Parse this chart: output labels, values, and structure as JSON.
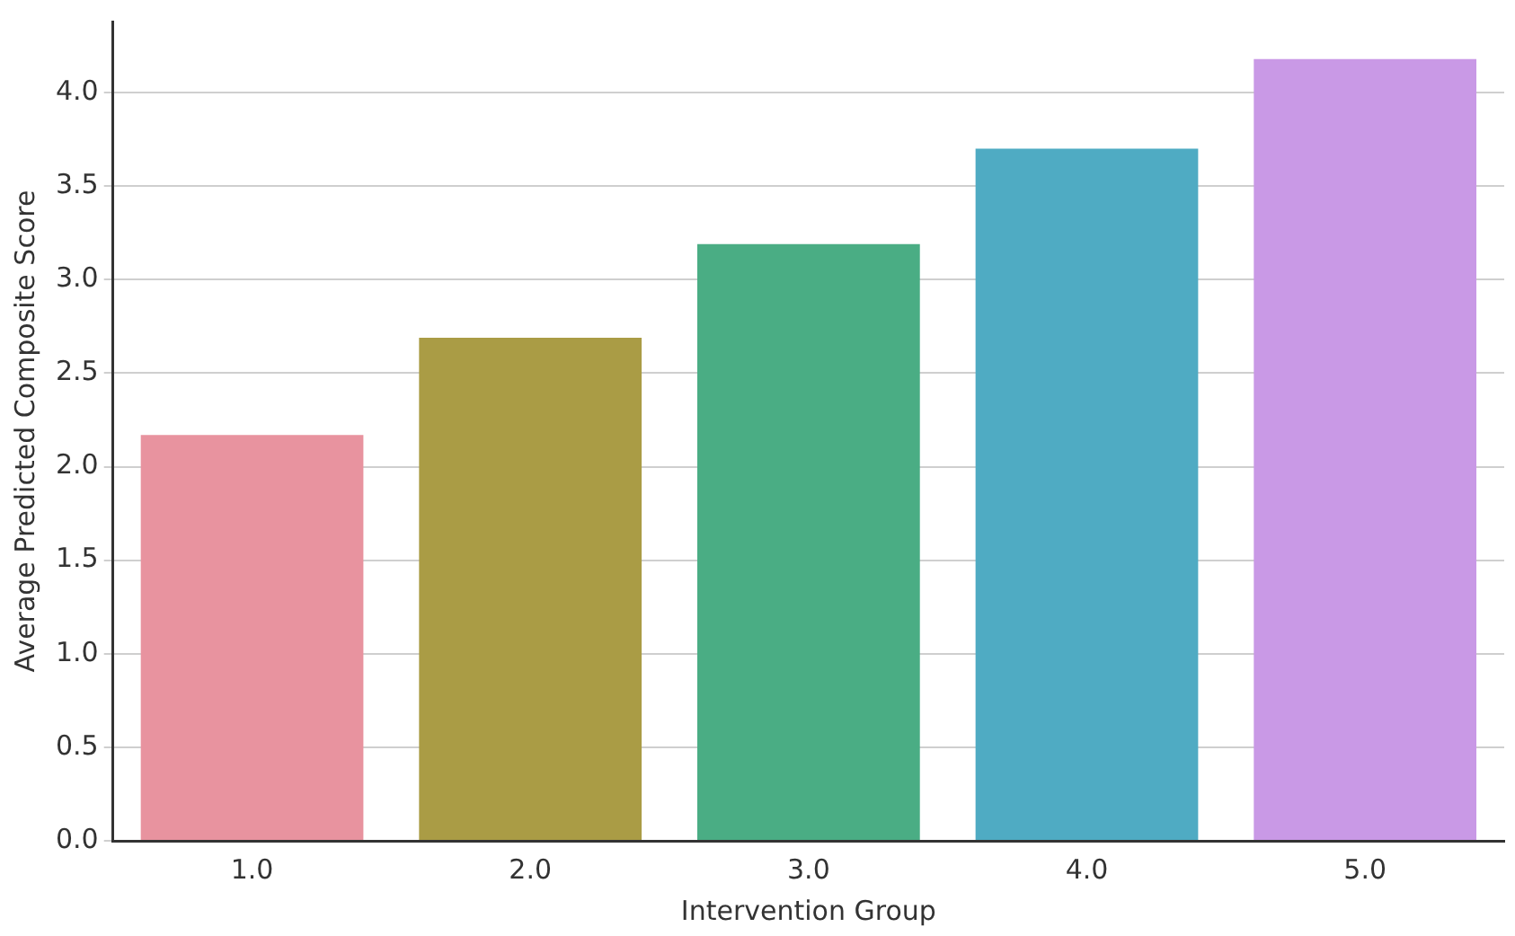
{
  "chart_data": {
    "type": "bar",
    "xlabel": "Intervention Group",
    "ylabel": "Average Predicted Composite Score",
    "categories": [
      "1.0",
      "2.0",
      "3.0",
      "4.0",
      "5.0"
    ],
    "values": [
      2.17,
      2.69,
      3.19,
      3.7,
      4.18
    ],
    "colors": [
      "#e8939f",
      "#aa9c45",
      "#4aad84",
      "#4fabc3",
      "#c999e6"
    ],
    "ylim": [
      0,
      4.38
    ],
    "yticks": [
      {
        "value": 0,
        "label": "0.0"
      },
      0.5,
      {
        "value": 1,
        "label": "1.0"
      },
      1.5,
      {
        "value": 2,
        "label": "2.0"
      },
      2.5,
      {
        "value": 3,
        "label": "3.0"
      },
      3.5,
      {
        "value": 4,
        "label": "4.0"
      }
    ],
    "grid": "y",
    "legend": false
  }
}
